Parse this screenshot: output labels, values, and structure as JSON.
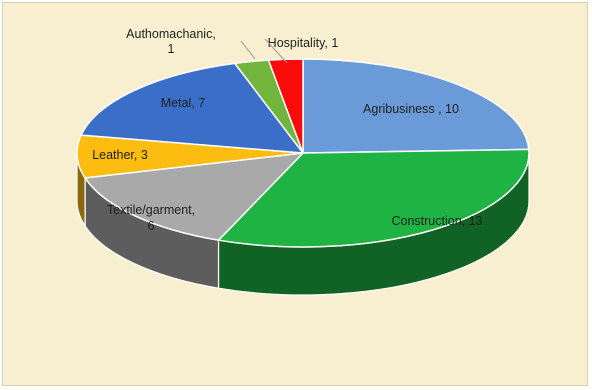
{
  "chart_data": {
    "type": "pie",
    "style": "3d",
    "title": "",
    "slices": [
      {
        "name": "Agribusiness",
        "value": 10,
        "label_lines": [
          "Agribusiness , 10"
        ],
        "color": "#6b9ad8"
      },
      {
        "name": "Construction",
        "value": 13,
        "label_lines": [
          "Construction, 13"
        ],
        "color": "#1fb343"
      },
      {
        "name": "Textile/garment",
        "value": 6,
        "label_lines": [
          "Textile/garment,",
          "6"
        ],
        "color": "#a9a9a9"
      },
      {
        "name": "Leather",
        "value": 3,
        "label_lines": [
          "Leather, 3"
        ],
        "color": "#fdbd10"
      },
      {
        "name": "Metal",
        "value": 7,
        "label_lines": [
          "Metal, 7"
        ],
        "color": "#3a6ec9"
      },
      {
        "name": "Authomachanic",
        "value": 1,
        "label_lines": [
          "Authomachanic,",
          "1"
        ],
        "color": "#71b53d"
      },
      {
        "name": "Hospitality",
        "value": 1,
        "label_lines": [
          "Hospitality, 1"
        ],
        "color": "#fb0a0a"
      }
    ],
    "legend": "none"
  },
  "colors": {
    "background": "#f7efcf",
    "border": "#d8cfae"
  }
}
